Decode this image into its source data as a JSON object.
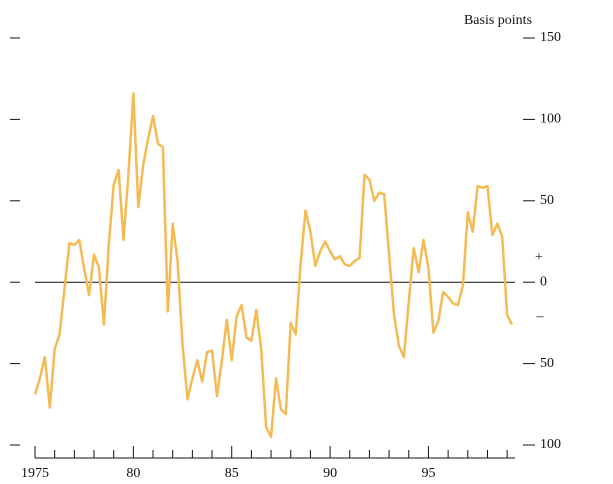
{
  "chart_data": {
    "type": "line",
    "y_label": "Basis points",
    "annotations": [
      "+",
      "–"
    ],
    "x": [
      1975,
      1975.25,
      1975.5,
      1975.75,
      1976,
      1976.25,
      1976.5,
      1976.75,
      1977,
      1977.25,
      1977.5,
      1977.75,
      1978,
      1978.25,
      1978.5,
      1978.75,
      1979,
      1979.25,
      1979.5,
      1979.75,
      1980,
      1980.25,
      1980.5,
      1980.75,
      1981,
      1981.25,
      1981.5,
      1981.75,
      1982,
      1982.25,
      1982.5,
      1982.75,
      1983,
      1983.25,
      1983.5,
      1983.75,
      1984,
      1984.25,
      1984.5,
      1984.75,
      1985,
      1985.25,
      1985.5,
      1985.75,
      1986,
      1986.25,
      1986.5,
      1986.75,
      1987,
      1987.25,
      1987.5,
      1987.75,
      1988,
      1988.25,
      1988.5,
      1988.75,
      1989,
      1989.25,
      1989.5,
      1989.75,
      1990,
      1990.25,
      1990.5,
      1990.75,
      1991,
      1991.25,
      1991.5,
      1991.75,
      1992,
      1992.25,
      1992.5,
      1992.75,
      1993,
      1993.25,
      1993.5,
      1993.75,
      1994,
      1994.25,
      1994.5,
      1994.75,
      1995,
      1995.25,
      1995.5,
      1995.75,
      1996,
      1996.25,
      1996.5,
      1996.75,
      1997,
      1997.25,
      1997.5,
      1997.75,
      1998,
      1998.25,
      1998.5,
      1998.75,
      1999,
      1999.25
    ],
    "values": [
      -69,
      -59,
      -46,
      -77,
      -41,
      -32,
      -4,
      24,
      23,
      26,
      8,
      -8,
      17,
      9,
      -26,
      23,
      60,
      69,
      26,
      66,
      116,
      46,
      72,
      88,
      102,
      85,
      83,
      -18,
      36,
      13,
      -38,
      -72,
      -59,
      -48,
      -61,
      -43,
      -42,
      -70,
      -48,
      -23,
      -48,
      -21,
      -14,
      -34,
      -36,
      -17,
      -41,
      -89,
      -95,
      -59,
      -78,
      -81,
      -25,
      -32,
      11,
      44,
      31,
      10,
      19,
      25,
      19,
      14,
      16,
      11,
      10,
      13,
      15,
      66,
      63,
      50,
      55,
      54,
      17,
      -20,
      -39,
      -46,
      -12,
      21,
      6,
      26,
      9,
      -31,
      -24,
      -6,
      -9,
      -13,
      -14,
      -2,
      43,
      31,
      59,
      58,
      59,
      29,
      36,
      28,
      -20,
      -26
    ],
    "color": "#f4bb55",
    "xlim": [
      1975,
      1999.4
    ],
    "xticks": [
      {
        "value": 1975,
        "label": "1975"
      },
      {
        "value": 1980,
        "label": "80"
      },
      {
        "value": 1985,
        "label": "85"
      },
      {
        "value": 1990,
        "label": "90"
      },
      {
        "value": 1995,
        "label": "95"
      }
    ],
    "xminor_ticks": [
      1976,
      1977,
      1978,
      1979,
      1981,
      1982,
      1983,
      1984,
      1986,
      1987,
      1988,
      1989,
      1991,
      1992,
      1993,
      1994,
      1996,
      1997,
      1998,
      1999
    ],
    "ylim": [
      -100,
      150
    ],
    "yticks": [
      150,
      100,
      50,
      0,
      {
        "value": -50,
        "label": "50"
      },
      {
        "value": -100,
        "label": "100"
      }
    ],
    "zero_line": true
  }
}
